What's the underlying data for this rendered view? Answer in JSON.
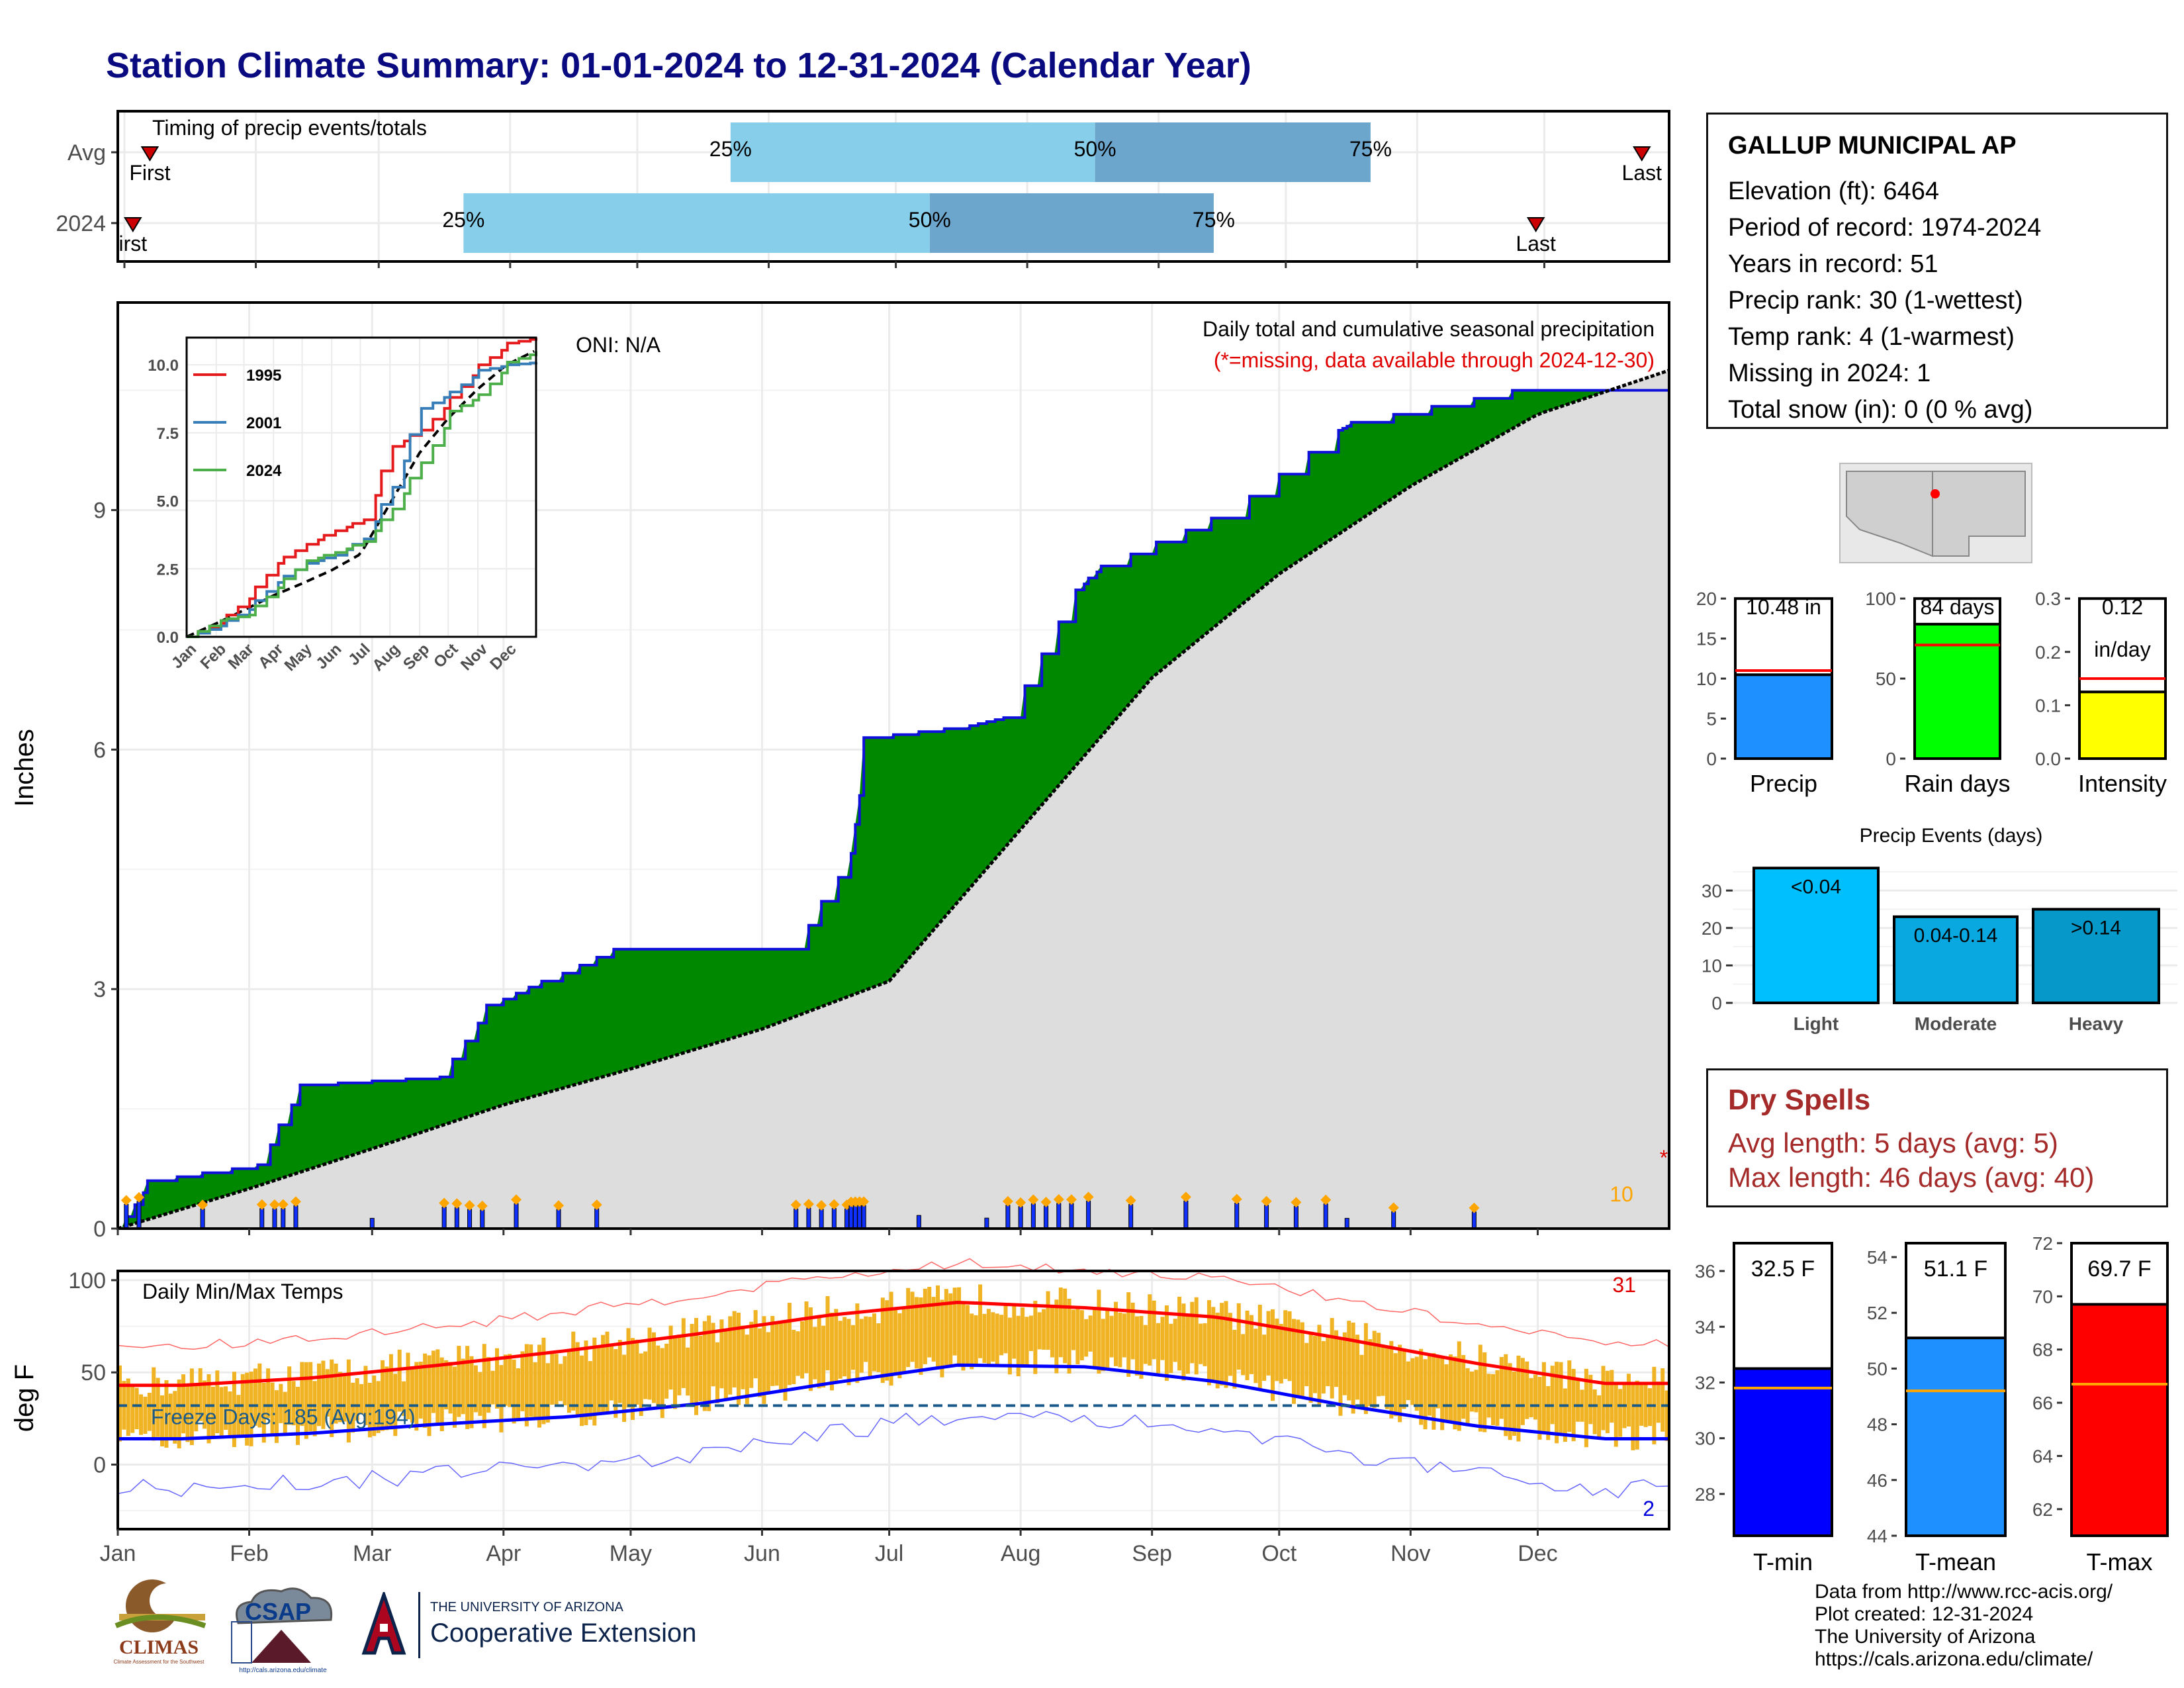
{
  "title": "Station Climate Summary: 01-01-2024 to 12-31-2024 (Calendar Year)",
  "timing": {
    "label": "Timing of precip events/totals",
    "rows": [
      {
        "name": "Avg",
        "first_day": 6,
        "p25_day": 143,
        "p50_day": 229,
        "p75_day": 294,
        "last_day": 358,
        "first_label": "First",
        "last_label": "Last"
      },
      {
        "name": "2024",
        "first_day": 2,
        "p25_day": 80,
        "p50_day": 190,
        "p75_day": 257,
        "last_day": 333,
        "first_label": "irst",
        "last_label": "Last"
      }
    ],
    "pct_labels": [
      "25%",
      "50%",
      "75%"
    ]
  },
  "precip_panel": {
    "ylabel": "Inches",
    "y_ticks": [
      "0",
      "3",
      "6",
      "9"
    ],
    "title_line1": "Daily total and cumulative seasonal precipitation",
    "title_line2": "(*=missing, data available through 2024-12-30)",
    "oni": "ONI: N/A",
    "count_label": "10",
    "missing_marker": "*",
    "colors": {
      "observed_line": "#1010dd",
      "above_fill": "#008800",
      "avg_fill": "#dddddd",
      "daily_bar": "#1030ff",
      "extreme": "#ffa500"
    }
  },
  "inset": {
    "y_ticks": [
      "0.0",
      "2.5",
      "5.0",
      "7.5",
      "10.0"
    ],
    "x_ticks": [
      "Jan",
      "Feb",
      "Mar",
      "Apr",
      "May",
      "Jun",
      "Jul",
      "Aug",
      "Sep",
      "Oct",
      "Nov",
      "Dec"
    ],
    "legend": [
      {
        "name": "1995",
        "color": "#e41a1c"
      },
      {
        "name": "2001",
        "color": "#377eb8"
      },
      {
        "name": "2024",
        "color": "#4daf4a"
      }
    ]
  },
  "temp_panel": {
    "ylabel": "deg F",
    "title": "Daily Min/Max Temps",
    "y_ticks": [
      "0",
      "50",
      "100"
    ],
    "freeze_label": "Freeze Days: 185 (Avg:194)",
    "hot_count": "31",
    "cold_count": "2",
    "x_ticks": [
      "Jan",
      "Feb",
      "Mar",
      "Apr",
      "May",
      "Jun",
      "Jul",
      "Aug",
      "Sep",
      "Oct",
      "Nov",
      "Dec"
    ]
  },
  "station": {
    "name": "GALLUP MUNICIPAL AP",
    "lines": [
      "Elevation (ft): 6464",
      "Period of record: 1974-2024",
      "Years in record: 51",
      "Precip rank: 30 (1-wettest)",
      "Temp rank: 4 (1-warmest)",
      "Missing in 2024: 1",
      "Total snow (in): 0 (0 % avg)"
    ]
  },
  "mini_bars": [
    {
      "label": "Precip",
      "value_text": "10.48 in",
      "value": 10.48,
      "avg": 11.0,
      "max": 20,
      "ticks": [
        "0",
        "5",
        "10",
        "15",
        "20"
      ],
      "tick_vals": [
        0,
        5,
        10,
        15,
        20
      ],
      "color": "#1e90ff"
    },
    {
      "label": "Rain days",
      "value_text": "84 days",
      "value": 84,
      "avg": 71,
      "max": 100,
      "ticks": [
        "0",
        "50",
        "100"
      ],
      "tick_vals": [
        0,
        50,
        100
      ],
      "color": "#00ff00"
    },
    {
      "label": "Intensity",
      "value_text": "0.12",
      "value_text2": "in/day",
      "value": 0.125,
      "avg": 0.15,
      "max": 0.3,
      "ticks": [
        "0.0",
        "0.1",
        "0.2",
        "0.3"
      ],
      "tick_vals": [
        0,
        0.1,
        0.2,
        0.3
      ],
      "color": "#ffff00"
    }
  ],
  "events": {
    "title": "Precip Events (days)",
    "y_ticks": [
      "0",
      "10",
      "20",
      "30"
    ],
    "bars": [
      {
        "label": "Light",
        "text": "<0.04",
        "value": 36,
        "color": "#00bfff"
      },
      {
        "label": "Moderate",
        "text": "0.04-0.14",
        "value": 23,
        "color": "#0aa8e0"
      },
      {
        "label": "Heavy",
        "text": ">0.14",
        "value": 25,
        "color": "#0598c8"
      }
    ]
  },
  "dry_spells": {
    "title": "Dry Spells",
    "lines": [
      "Avg length: 5 days (avg: 5)",
      "Max length: 46 days (avg: 40)"
    ]
  },
  "temp_bars": [
    {
      "label": "T-min",
      "value_text": "32.5 F",
      "value": 32.5,
      "avg": 31.8,
      "min": 26.5,
      "max": 37,
      "ticks": [
        "28",
        "30",
        "32",
        "34",
        "36"
      ],
      "tick_vals": [
        28,
        30,
        32,
        34,
        36
      ],
      "color": "#0000ff"
    },
    {
      "label": "T-mean",
      "value_text": "51.1 F",
      "value": 51.1,
      "avg": 49.2,
      "min": 44,
      "max": 54.5,
      "ticks": [
        "44",
        "46",
        "48",
        "50",
        "52",
        "54"
      ],
      "tick_vals": [
        44,
        46,
        48,
        50,
        52,
        54
      ],
      "color": "#1e90ff"
    },
    {
      "label": "T-max",
      "value_text": "69.7 F",
      "value": 69.7,
      "avg": 66.7,
      "min": 61,
      "max": 72,
      "ticks": [
        "62",
        "64",
        "66",
        "68",
        "70",
        "72"
      ],
      "tick_vals": [
        62,
        64,
        66,
        68,
        70,
        72
      ],
      "color": "#ff0000"
    }
  ],
  "credits": [
    "Data from http://www.rcc-acis.org/",
    "Plot created: 12-31-2024",
    "The University of Arizona",
    "https://cals.arizona.edu/climate/"
  ],
  "logos": {
    "climas": "CLIMAS",
    "climas_sub": "Climate Assessment for the Southwest",
    "csap": "CSAP",
    "csap_url": "http://cals.arizona.edu/climate",
    "ua_small": "THE UNIVERSITY OF ARIZONA",
    "ua_big": "Cooperative Extension"
  },
  "chart_data": [
    {
      "type": "area",
      "title": "Daily total and cumulative seasonal precipitation",
      "ylabel": "Inches",
      "ylim": [
        0,
        11.6
      ],
      "series": [
        {
          "name": "2024 cumulative",
          "x": [
            "01-01",
            "01-08",
            "02-03",
            "02-13",
            "03-17",
            "03-28",
            "04-10",
            "04-27",
            "06-08",
            "06-22",
            "06-25",
            "07-20",
            "07-28",
            "08-14",
            "08-20",
            "09-15",
            "09-17",
            "10-15",
            "10-18",
            "11-25",
            "12-31"
          ],
          "values": [
            0.0,
            0.6,
            0.8,
            1.8,
            1.9,
            2.8,
            3.1,
            3.5,
            3.5,
            4.7,
            6.15,
            6.3,
            6.4,
            8.0,
            8.3,
            8.9,
            8.9,
            10.0,
            10.1,
            10.5,
            10.5
          ]
        }
      ],
      "avg_cumulative_end": 10.75,
      "grid": true
    },
    {
      "type": "line",
      "title": "Daily Min/Max Temps",
      "ylabel": "deg F",
      "ylim": [
        -35,
        105
      ],
      "series": [
        {
          "name": "avg max",
          "x": [
            "Jan",
            "Feb",
            "Mar",
            "Apr",
            "May",
            "Jun",
            "Jul",
            "Aug",
            "Sep",
            "Oct",
            "Nov",
            "Dec"
          ],
          "values": [
            43,
            47,
            54,
            62,
            71,
            81,
            88,
            85,
            80,
            68,
            55,
            44
          ]
        },
        {
          "name": "avg min",
          "x": [
            "Jan",
            "Feb",
            "Mar",
            "Apr",
            "May",
            "Jun",
            "Jul",
            "Aug",
            "Sep",
            "Oct",
            "Nov",
            "Dec"
          ],
          "values": [
            14,
            17,
            22,
            26,
            33,
            44,
            54,
            53,
            45,
            32,
            21,
            14
          ]
        }
      ],
      "freeze_line": 32
    }
  ]
}
